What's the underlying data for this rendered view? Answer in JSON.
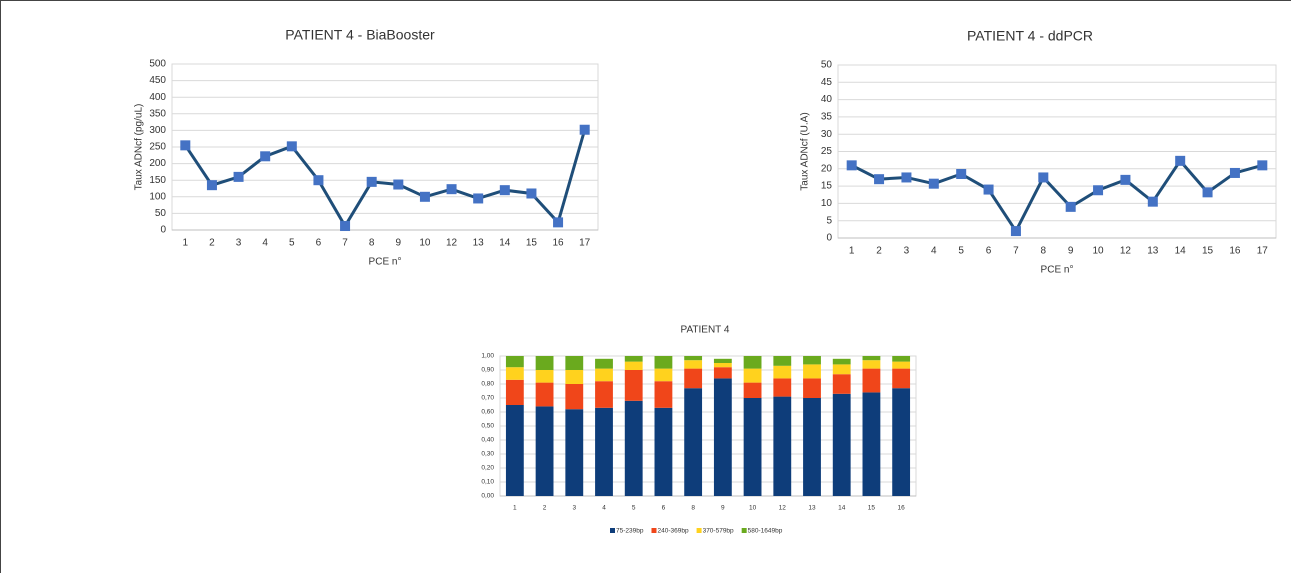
{
  "chart_data": [
    {
      "type": "line",
      "title": "PATIENT 4  - BiaBooster",
      "x_label": "PCE n°",
      "y_label": "Taux ADNcf (pg/uL)",
      "categories": [
        "1",
        "2",
        "3",
        "4",
        "5",
        "6",
        "7",
        "8",
        "9",
        "10",
        "12",
        "13",
        "14",
        "15",
        "16",
        "17"
      ],
      "series": [
        {
          "color": "#1f4e79",
          "marker_color": "#4472c4",
          "values": [
            255,
            135,
            160,
            222,
            252,
            150,
            12,
            145,
            137,
            100,
            123,
            95,
            120,
            110,
            23,
            302
          ]
        }
      ],
      "ylim": [
        0,
        500
      ],
      "yticks": [
        0,
        50,
        100,
        150,
        200,
        250,
        300,
        350,
        400,
        450,
        500
      ],
      "grid": true
    },
    {
      "type": "line",
      "title": "PATIENT 4 - ddPCR",
      "x_label": "PCE n°",
      "y_label": "Taux ADNcf (U.A)",
      "categories": [
        "1",
        "2",
        "3",
        "4",
        "5",
        "6",
        "7",
        "8",
        "9",
        "10",
        "12",
        "13",
        "14",
        "15",
        "16",
        "17"
      ],
      "series": [
        {
          "color": "#1f4e79",
          "marker_color": "#4472c4",
          "values": [
            21,
            17,
            17.5,
            15.7,
            18.5,
            14,
            2,
            17.5,
            9,
            13.8,
            16.8,
            10.5,
            22.3,
            13.2,
            18.8,
            21
          ]
        }
      ],
      "ylim": [
        0,
        50
      ],
      "yticks": [
        0,
        5,
        10,
        15,
        20,
        25,
        30,
        35,
        40,
        45,
        50
      ],
      "grid": true
    },
    {
      "type": "stacked_bar",
      "title": "PATIENT 4",
      "categories": [
        "1",
        "2",
        "3",
        "4",
        "5",
        "6",
        "8",
        "9",
        "10",
        "12",
        "13",
        "14",
        "15",
        "16"
      ],
      "series": [
        {
          "name": "75-239bp",
          "color": "#0e3d7a",
          "values": [
            0.65,
            0.64,
            0.62,
            0.63,
            0.68,
            0.63,
            0.77,
            0.84,
            0.7,
            0.71,
            0.7,
            0.73,
            0.74,
            0.77
          ]
        },
        {
          "name": "240-369bp",
          "color": "#f0461a",
          "values": [
            0.18,
            0.17,
            0.18,
            0.19,
            0.22,
            0.19,
            0.14,
            0.08,
            0.11,
            0.13,
            0.14,
            0.14,
            0.17,
            0.14
          ]
        },
        {
          "name": "370-579bp",
          "color": "#ffd21e",
          "values": [
            0.09,
            0.09,
            0.1,
            0.09,
            0.06,
            0.09,
            0.06,
            0.03,
            0.1,
            0.09,
            0.1,
            0.07,
            0.06,
            0.05
          ]
        },
        {
          "name": "580-1649bp",
          "color": "#6aaa1e",
          "values": [
            0.08,
            0.1,
            0.1,
            0.07,
            0.04,
            0.09,
            0.03,
            0.03,
            0.09,
            0.07,
            0.06,
            0.04,
            0.03,
            0.04
          ]
        }
      ],
      "ylim": [
        0,
        1
      ],
      "yticks": [
        {
          "value": 0,
          "label": "0,00"
        },
        {
          "value": 0.1,
          "label": "0,10"
        },
        {
          "value": 0.2,
          "label": "0,20"
        },
        {
          "value": 0.3,
          "label": "0,30"
        },
        {
          "value": 0.4,
          "label": "0,40"
        },
        {
          "value": 0.5,
          "label": "0,50"
        },
        {
          "value": 0.6,
          "label": "0,60"
        },
        {
          "value": 0.7,
          "label": "0,70"
        },
        {
          "value": 0.8,
          "label": "0,80"
        },
        {
          "value": 0.9,
          "label": "0,90"
        },
        {
          "value": 1,
          "label": "1,00"
        }
      ],
      "grid": true,
      "legend": "bottom"
    }
  ]
}
